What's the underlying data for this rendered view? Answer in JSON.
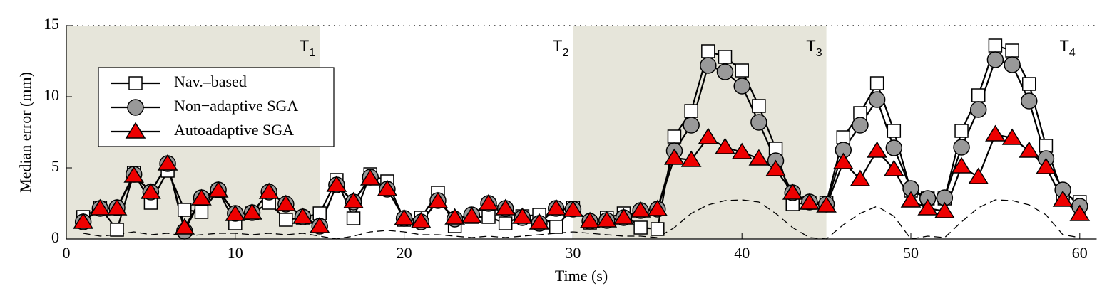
{
  "chart_data": {
    "type": "line",
    "xlabel": "Time (s)",
    "ylabel": "Median error (mm)",
    "xlim": [
      0,
      61
    ],
    "ylim": [
      0,
      15
    ],
    "xticks": [
      0,
      10,
      20,
      30,
      40,
      50,
      60
    ],
    "yticks": [
      0,
      5,
      10,
      15
    ],
    "legend": "upper left",
    "regions": [
      {
        "label": "T",
        "subscript": "1",
        "x": [
          0,
          15
        ],
        "shaded": true,
        "color": "#e6e5da"
      },
      {
        "label": "T",
        "subscript": "2",
        "x": [
          15,
          30
        ],
        "shaded": false
      },
      {
        "label": "T",
        "subscript": "3",
        "x": [
          30,
          45
        ],
        "shaded": true,
        "color": "#e6e5da"
      },
      {
        "label": "T",
        "subscript": "4",
        "x": [
          45,
          60
        ],
        "shaded": false
      }
    ],
    "x": [
      1,
      2,
      3,
      4,
      5,
      6,
      7,
      8,
      9,
      10,
      11,
      12,
      13,
      14,
      15,
      16,
      17,
      18,
      19,
      20,
      21,
      22,
      23,
      24,
      25,
      26,
      27,
      28,
      29,
      30,
      31,
      32,
      33,
      34,
      35,
      36,
      37,
      38,
      39,
      40,
      41,
      42,
      43,
      44,
      45,
      46,
      47,
      48,
      49,
      50,
      51,
      52,
      53,
      54,
      55,
      56,
      57,
      58,
      59,
      60
    ],
    "series": [
      {
        "color": "#000000",
        "line_style": "dashed",
        "marker": "none",
        "values": [
          0.4,
          0.2,
          0.3,
          0.5,
          0.3,
          0.4,
          0.2,
          0.3,
          0.4,
          0.4,
          0.3,
          0.4,
          0.3,
          0.4,
          0.2,
          0.0,
          0.2,
          0.5,
          0.6,
          0.5,
          0.3,
          0.3,
          0.2,
          0.1,
          0.2,
          0.1,
          0.2,
          0.3,
          0.4,
          0.5,
          0.4,
          0.3,
          0.2,
          0.2,
          0.1,
          0.8,
          1.8,
          2.4,
          2.7,
          2.75,
          2.6,
          1.8,
          0.8,
          0.1,
          0.0,
          1.0,
          1.8,
          2.3,
          1.6,
          0.0,
          0.2,
          0.1,
          1.2,
          2.2,
          2.75,
          2.7,
          2.4,
          1.7,
          0.3,
          0.1
        ]
      },
      {
        "name": "Nav.–based",
        "color": "#ffffff",
        "marker": "square",
        "values": [
          1.55,
          2.2,
          0.65,
          4.65,
          2.55,
          4.8,
          2.05,
          1.9,
          3.4,
          1.1,
          1.8,
          2.55,
          1.35,
          1.5,
          1.8,
          4.15,
          1.45,
          4.55,
          4.05,
          1.35,
          1.5,
          3.25,
          0.9,
          1.55,
          1.55,
          1.1,
          1.6,
          1.7,
          0.85,
          2.2,
          1.15,
          1.5,
          1.8,
          0.8,
          0.7,
          7.2,
          9.0,
          13.2,
          12.8,
          11.85,
          9.35,
          6.35,
          2.45,
          2.55,
          2.55,
          7.15,
          8.85,
          10.95,
          7.6,
          3.4,
          2.85,
          2.85,
          7.6,
          10.1,
          13.6,
          13.25,
          10.9,
          6.55,
          3.2,
          2.6
        ]
      },
      {
        "name": "Non−adaptive SGA",
        "color": "#999999",
        "marker": "circle",
        "values": [
          1.2,
          2.15,
          2.2,
          4.55,
          3.3,
          5.3,
          0.55,
          2.9,
          3.45,
          1.8,
          1.85,
          3.3,
          2.45,
          1.55,
          0.9,
          3.8,
          2.6,
          4.35,
          3.5,
          1.45,
          1.2,
          2.7,
          1.4,
          1.7,
          2.5,
          2.15,
          1.5,
          1.1,
          2.15,
          2.1,
          1.25,
          1.3,
          1.5,
          2.0,
          2.1,
          6.2,
          8.0,
          12.2,
          11.75,
          10.75,
          8.2,
          5.5,
          3.25,
          2.6,
          2.45,
          6.25,
          8.0,
          9.8,
          6.4,
          3.55,
          2.85,
          2.9,
          6.45,
          9.1,
          12.6,
          12.25,
          9.7,
          5.65,
          3.45,
          2.3
        ]
      },
      {
        "name": "Autoadaptive SGA",
        "color": "#ee0000",
        "marker": "triangle",
        "values": [
          1.2,
          2.15,
          2.15,
          4.45,
          3.3,
          5.3,
          0.8,
          2.85,
          3.4,
          1.75,
          1.85,
          3.3,
          2.45,
          1.55,
          0.9,
          3.8,
          2.65,
          4.25,
          3.5,
          1.45,
          1.25,
          2.65,
          1.5,
          1.6,
          2.5,
          2.15,
          1.55,
          1.15,
          2.15,
          2.05,
          1.25,
          1.3,
          1.5,
          2.0,
          2.1,
          5.7,
          5.55,
          7.15,
          6.45,
          6.1,
          5.65,
          4.9,
          3.25,
          2.55,
          2.35,
          5.4,
          4.2,
          6.2,
          4.9,
          2.7,
          2.15,
          1.95,
          5.1,
          4.35,
          7.35,
          7.1,
          6.2,
          5.05,
          2.75,
          1.75
        ]
      }
    ]
  }
}
